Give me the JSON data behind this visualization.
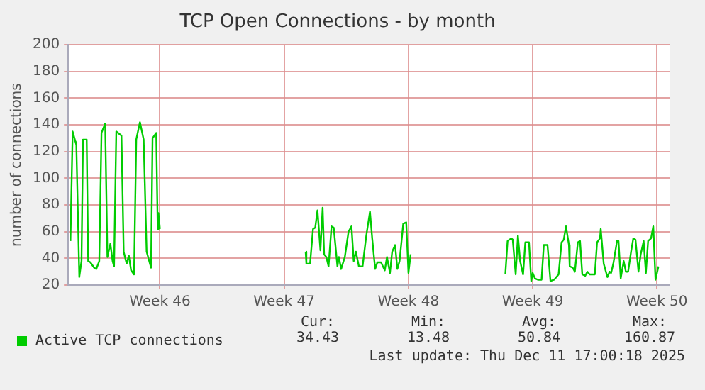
{
  "chart_data": {
    "type": "line",
    "title": "TCP Open Connections - by month",
    "ylabel": "number of connections",
    "x": [
      "2025-11-04T23:00",
      "2025-11-05T02:00",
      "2025-11-05T06:00",
      "2025-11-05T07:00",
      "2025-11-05T11:00",
      "2025-11-05T14:00",
      "2025-11-05T16:00",
      "2025-11-05T21:00",
      "2025-11-05T23:00",
      "2025-11-06T02:00",
      "2025-11-06T07:00",
      "2025-11-06T10:00",
      "2025-11-06T14:00",
      "2025-11-06T17:00",
      "2025-11-06T22:00",
      "2025-11-07T01:00",
      "2025-11-07T05:00",
      "2025-11-07T08:00",
      "2025-11-07T10:00",
      "2025-11-07T13:00",
      "2025-11-07T20:00",
      "2025-11-07T23:00",
      "2025-11-08T03:00",
      "2025-11-08T06:00",
      "2025-11-08T09:00",
      "2025-11-08T13:00",
      "2025-11-08T16:00",
      "2025-11-08T21:00",
      "2025-11-09T02:00",
      "2025-11-09T06:00",
      "2025-11-09T12:00",
      "2025-11-09T14:00",
      "2025-11-09T19:00",
      "2025-11-09T21:00",
      "2025-11-09T22:00",
      "2025-11-10T00:00",
      "2025-11-13T12:00",
      "2025-11-18T05:00",
      "2025-11-18T06:00",
      "2025-11-18T11:00",
      "2025-11-18T15:00",
      "2025-11-18T18:00",
      "2025-11-18T21:00",
      "2025-11-19T01:00",
      "2025-11-19T04:00",
      "2025-11-19T06:00",
      "2025-11-19T09:00",
      "2025-11-19T12:00",
      "2025-11-19T16:00",
      "2025-11-19T19:00",
      "2025-11-20T00:00",
      "2025-11-20T02:00",
      "2025-11-20T05:00",
      "2025-11-20T10:00",
      "2025-11-20T15:00",
      "2025-11-20T19:00",
      "2025-11-20T22:00",
      "2025-11-21T01:00",
      "2025-11-21T05:00",
      "2025-11-21T10:00",
      "2025-11-21T15:00",
      "2025-11-21T20:00",
      "2025-11-21T23:00",
      "2025-11-22T03:00",
      "2025-11-22T06:00",
      "2025-11-22T11:00",
      "2025-11-22T16:00",
      "2025-11-22T19:00",
      "2025-11-22T23:00",
      "2025-11-23T02:00",
      "2025-11-23T06:00",
      "2025-11-23T09:00",
      "2025-11-23T12:00",
      "2025-11-23T17:00",
      "2025-11-23T21:00",
      "2025-11-24T00:00",
      "2025-11-24T03:00",
      "2025-11-26T12:00",
      "2025-11-29T11:00",
      "2025-11-29T14:00",
      "2025-11-29T19:00",
      "2025-11-29T21:00",
      "2025-11-30T01:00",
      "2025-11-30T04:00",
      "2025-11-30T07:00",
      "2025-11-30T11:00",
      "2025-11-30T14:00",
      "2025-11-30T19:00",
      "2025-11-30T22:00",
      "2025-12-01T00:00",
      "2025-12-01T03:00",
      "2025-12-01T07:00",
      "2025-12-01T12:00",
      "2025-12-01T15:00",
      "2025-12-01T20:00",
      "2025-12-02T00:00",
      "2025-12-02T05:00",
      "2025-12-02T08:00",
      "2025-12-02T11:00",
      "2025-12-02T15:00",
      "2025-12-02T18:00",
      "2025-12-02T21:00",
      "2025-12-03T01:00",
      "2025-12-03T02:00",
      "2025-12-03T06:00",
      "2025-12-03T09:00",
      "2025-12-03T13:00",
      "2025-12-03T16:00",
      "2025-12-03T19:00",
      "2025-12-03T23:00",
      "2025-12-04T02:00",
      "2025-12-04T05:00",
      "2025-12-04T09:00",
      "2025-12-04T12:00",
      "2025-12-04T15:00",
      "2025-12-04T19:00",
      "2025-12-04T20:00",
      "2025-12-05T00:00",
      "2025-12-05T05:00",
      "2025-12-05T08:00",
      "2025-12-05T10:00",
      "2025-12-05T13:00",
      "2025-12-05T18:00",
      "2025-12-05T20:00",
      "2025-12-05T23:00",
      "2025-12-06T03:00",
      "2025-12-06T06:00",
      "2025-12-06T09:00",
      "2025-12-06T13:00",
      "2025-12-06T16:00",
      "2025-12-06T19:00",
      "2025-12-06T23:00",
      "2025-12-07T02:00",
      "2025-12-07T06:00",
      "2025-12-07T09:00",
      "2025-12-07T12:00",
      "2025-12-07T16:00",
      "2025-12-07T19:00",
      "2025-12-07T22:00",
      "2025-12-08T02:00"
    ],
    "series": [
      {
        "name": "Active TCP connections",
        "color": "#00cc00",
        "values": [
          53,
          135,
          127,
          125,
          26,
          38,
          129,
          129,
          38,
          37,
          33,
          32,
          38,
          134,
          141,
          41,
          51,
          38,
          34,
          135,
          132,
          45,
          36,
          42,
          31,
          28,
          129,
          142,
          129,
          45,
          33,
          130,
          134,
          62,
          74,
          62,
          null,
          45,
          36,
          36,
          62,
          63,
          76,
          46,
          78,
          43,
          41,
          34,
          64,
          63,
          34,
          41,
          32,
          41,
          60,
          64,
          38,
          45,
          34,
          34,
          57,
          75,
          55,
          32,
          37,
          37,
          31,
          41,
          29,
          45,
          50,
          32,
          38,
          66,
          67,
          29,
          43,
          null,
          28,
          53,
          55,
          54,
          28,
          57,
          38,
          28,
          52,
          52,
          23,
          29,
          25,
          24,
          24,
          50,
          50,
          23,
          24,
          26,
          28,
          52,
          54,
          64,
          50,
          34,
          33,
          30,
          52,
          53,
          28,
          27,
          30,
          28,
          28,
          28,
          52,
          55,
          62,
          36,
          26,
          30,
          29,
          36,
          53,
          53,
          25,
          38,
          30,
          30,
          45,
          55,
          54,
          30,
          43,
          53,
          29,
          53,
          55,
          64,
          24,
          34
        ]
      }
    ],
    "xlim": [
      "2025-11-04T20:00",
      "2025-12-08T17:00"
    ],
    "xticks": [
      {
        "value": "2025-11-10",
        "label": "Week 46"
      },
      {
        "value": "2025-11-17",
        "label": "Week 47"
      },
      {
        "value": "2025-11-24",
        "label": "Week 48"
      },
      {
        "value": "2025-12-01",
        "label": "Week 49"
      },
      {
        "value": "2025-12-08",
        "label": "Week 50"
      }
    ],
    "ylim": [
      20,
      200
    ],
    "yticks": [
      20,
      40,
      60,
      80,
      100,
      120,
      140,
      160,
      180,
      200
    ],
    "grid": true,
    "legend": "bottom",
    "marker": "none",
    "line_style": "solid",
    "annotations": [
      "Cur:",
      "34.43",
      "Min:",
      "13.48",
      "Avg:",
      "50.84",
      "Max:",
      "160.87",
      "Last update: Thu Dec 11 17:00:18 2025"
    ]
  }
}
